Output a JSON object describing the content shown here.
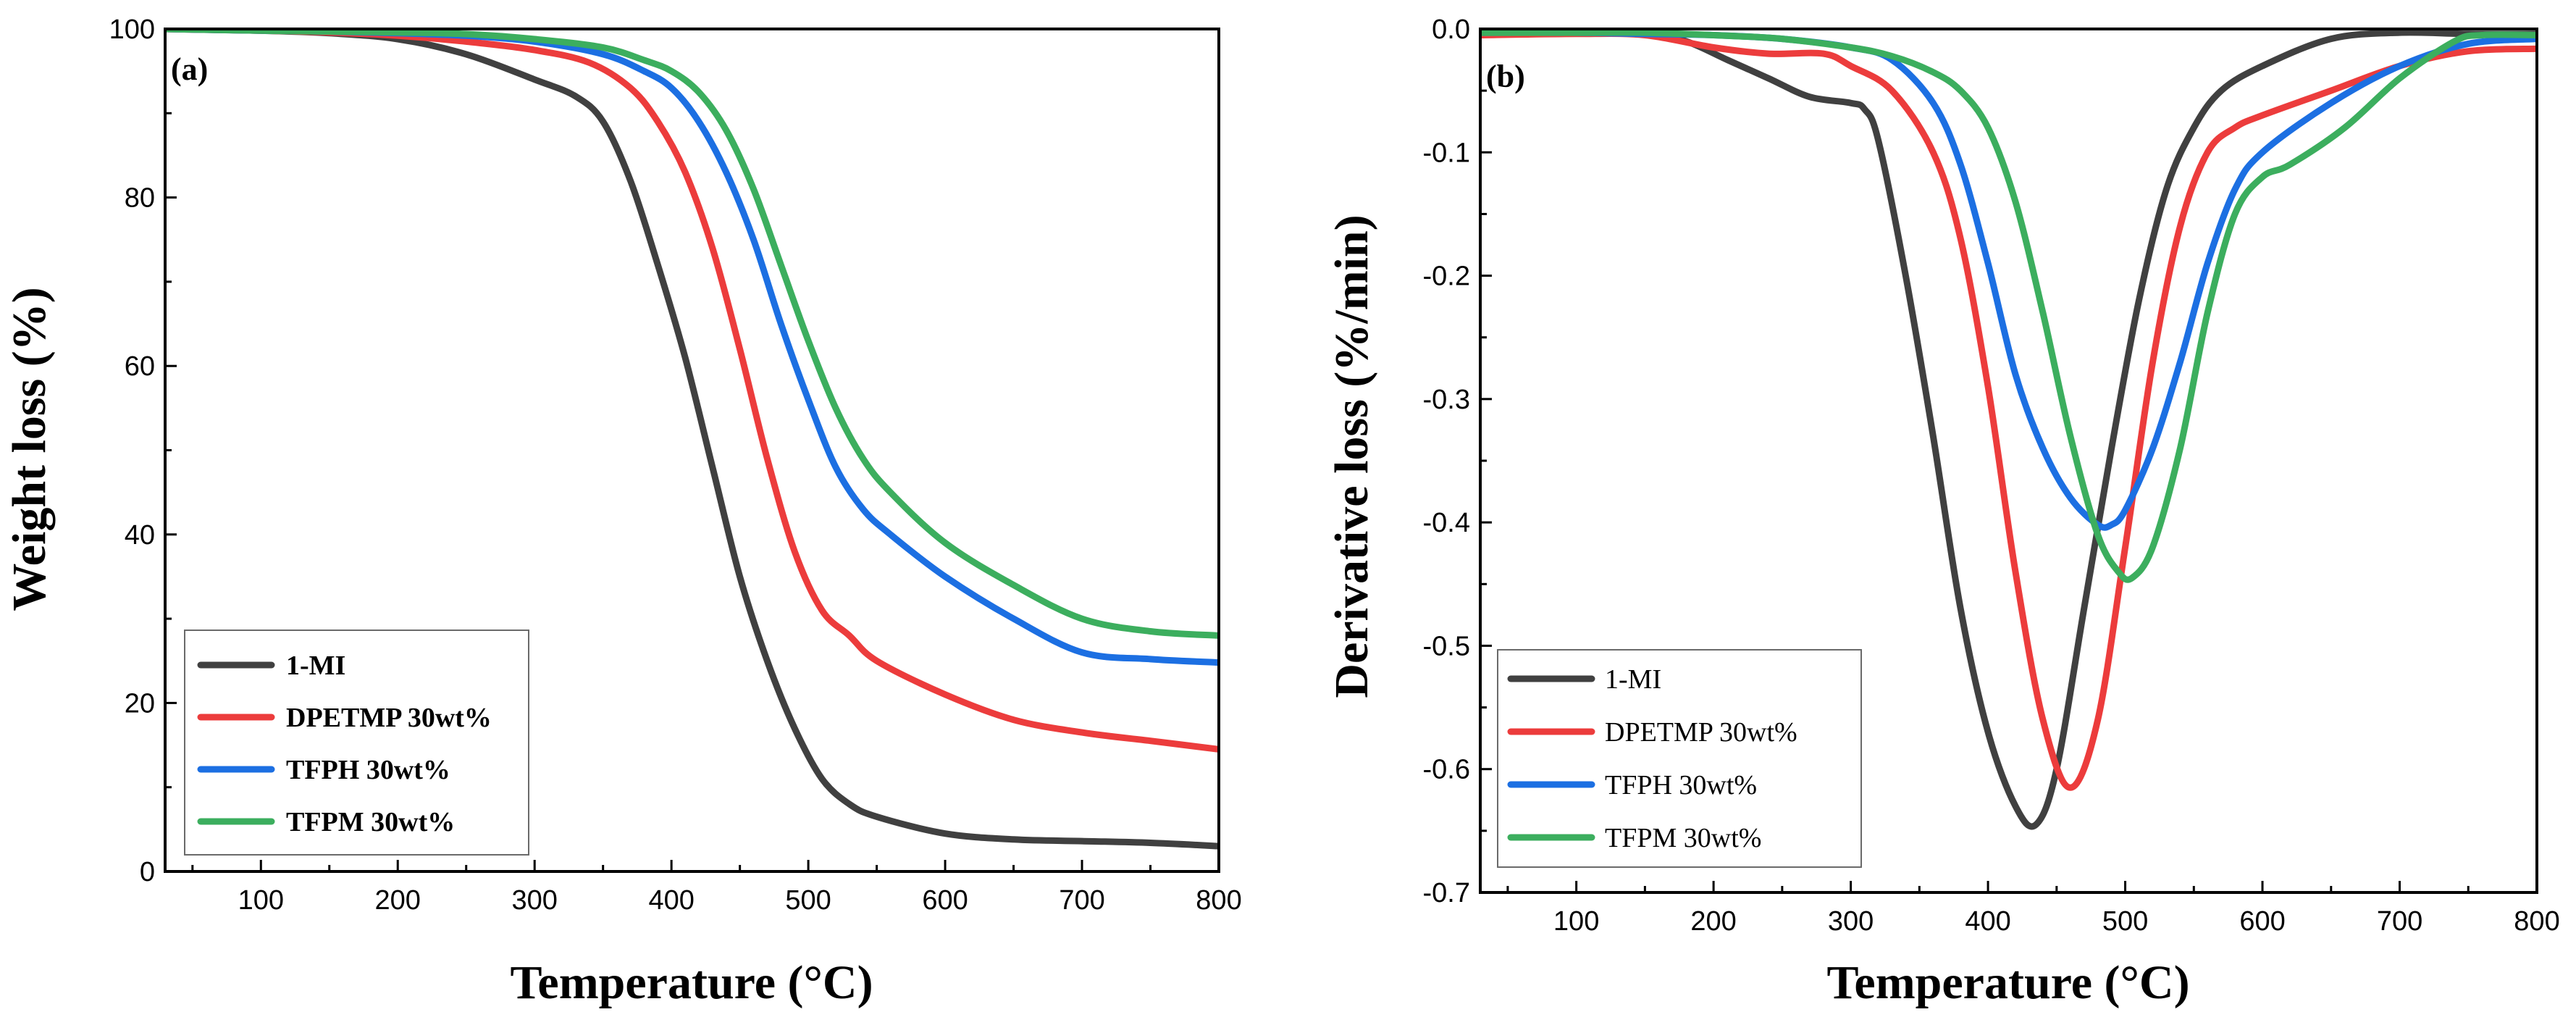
{
  "chart_data": [
    {
      "panel_label": "(a)",
      "type": "line",
      "title": "",
      "xlabel": "Temperature (°C)",
      "ylabel": "Weight loss (%)",
      "xlim": [
        30,
        800
      ],
      "ylim": [
        0,
        100
      ],
      "x_ticks": [
        100,
        200,
        300,
        400,
        500,
        600,
        700,
        800
      ],
      "y_ticks": [
        0,
        20,
        40,
        60,
        80,
        100
      ],
      "x_tick_labels": [
        "100",
        "200",
        "300",
        "400",
        "500",
        "600",
        "700",
        "800"
      ],
      "y_tick_labels": [
        "0",
        "20",
        "40",
        "60",
        "80",
        "100"
      ],
      "legend_position": "bottom-left",
      "grid": false,
      "series": [
        {
          "name": "1-MI",
          "color": "#404040",
          "x": [
            30,
            100,
            150,
            200,
            250,
            300,
            330,
            350,
            370,
            390,
            410,
            430,
            450,
            470,
            490,
            510,
            530,
            550,
            600,
            650,
            700,
            750,
            800
          ],
          "values": [
            100,
            99.8,
            99.5,
            98.8,
            97,
            94,
            92,
            89,
            82,
            72,
            61,
            48,
            35,
            25,
            17,
            11,
            8,
            6.5,
            4.5,
            3.8,
            3.6,
            3.4,
            3
          ]
        },
        {
          "name": "DPETMP 30wt%",
          "color": "#ec3c3c",
          "x": [
            30,
            100,
            150,
            200,
            250,
            300,
            340,
            370,
            390,
            410,
            430,
            450,
            470,
            490,
            510,
            530,
            550,
            600,
            650,
            700,
            750,
            800
          ],
          "values": [
            100,
            99.8,
            99.6,
            99.2,
            98.5,
            97.5,
            96,
            93,
            89,
            83,
            74,
            62,
            49,
            38,
            31,
            28,
            25,
            21,
            18,
            16.5,
            15.5,
            14.5
          ]
        },
        {
          "name": "TFPH 30wt%",
          "color": "#1c6fe2",
          "x": [
            30,
            100,
            150,
            200,
            250,
            300,
            350,
            380,
            400,
            420,
            440,
            460,
            480,
            500,
            520,
            540,
            560,
            600,
            650,
            700,
            750,
            800
          ],
          "values": [
            100,
            99.8,
            99.7,
            99.5,
            99.2,
            98.5,
            97,
            95,
            93,
            89,
            83,
            75,
            65,
            56,
            48,
            43,
            40,
            35,
            30,
            26,
            25.2,
            24.8
          ]
        },
        {
          "name": "TFPM 30wt%",
          "color": "#3cae5e",
          "x": [
            30,
            100,
            150,
            200,
            250,
            300,
            350,
            380,
            400,
            420,
            440,
            460,
            480,
            500,
            520,
            540,
            560,
            600,
            650,
            700,
            750,
            800
          ],
          "values": [
            100,
            99.8,
            99.7,
            99.6,
            99.4,
            98.8,
            97.8,
            96.3,
            95,
            92.5,
            88,
            81,
            72,
            63,
            55,
            49,
            45,
            39,
            34,
            30,
            28.5,
            28
          ]
        }
      ]
    },
    {
      "panel_label": "(b)",
      "type": "line",
      "title": "",
      "xlabel": "Temperature (°C)",
      "ylabel": "Derivative loss (%/min)",
      "xlim": [
        30,
        800
      ],
      "ylim": [
        -0.7,
        0
      ],
      "x_ticks": [
        100,
        200,
        300,
        400,
        500,
        600,
        700,
        800
      ],
      "y_ticks": [
        0,
        -0.1,
        -0.2,
        -0.3,
        -0.4,
        -0.5,
        -0.6,
        -0.7
      ],
      "x_tick_labels": [
        "100",
        "200",
        "300",
        "400",
        "500",
        "600",
        "700",
        "800"
      ],
      "y_tick_labels": [
        "0.0",
        "-0.1",
        "-0.2",
        "-0.3",
        "-0.4",
        "-0.5",
        "-0.6",
        "-0.7"
      ],
      "legend_position": "bottom-left",
      "grid": false,
      "series": [
        {
          "name": "1-MI",
          "color": "#404040",
          "x": [
            30,
            100,
            150,
            180,
            210,
            240,
            270,
            300,
            310,
            320,
            340,
            360,
            380,
            400,
            420,
            435,
            450,
            470,
            490,
            510,
            530,
            550,
            570,
            600,
            650,
            700,
            750,
            800
          ],
          "values": [
            -0.003,
            -0.003,
            -0.003,
            -0.01,
            -0.025,
            -0.04,
            -0.055,
            -0.06,
            -0.065,
            -0.09,
            -0.2,
            -0.33,
            -0.47,
            -0.57,
            -0.63,
            -0.645,
            -0.6,
            -0.47,
            -0.34,
            -0.22,
            -0.13,
            -0.08,
            -0.05,
            -0.03,
            -0.008,
            -0.003,
            -0.004,
            -0.004
          ]
        },
        {
          "name": "DPETMP 30wt%",
          "color": "#ec3c3c",
          "x": [
            30,
            100,
            150,
            200,
            240,
            280,
            300,
            330,
            360,
            380,
            400,
            420,
            440,
            460,
            480,
            500,
            520,
            540,
            560,
            580,
            600,
            650,
            700,
            750,
            800
          ],
          "values": [
            -0.005,
            -0.004,
            -0.005,
            -0.015,
            -0.02,
            -0.02,
            -0.03,
            -0.05,
            -0.1,
            -0.17,
            -0.29,
            -0.44,
            -0.56,
            -0.615,
            -0.56,
            -0.42,
            -0.27,
            -0.16,
            -0.1,
            -0.08,
            -0.07,
            -0.05,
            -0.03,
            -0.018,
            -0.016
          ]
        },
        {
          "name": "TFPH 30wt%",
          "color": "#1c6fe2",
          "x": [
            30,
            100,
            150,
            200,
            250,
            300,
            330,
            360,
            380,
            400,
            420,
            440,
            460,
            480,
            490,
            500,
            520,
            540,
            560,
            580,
            600,
            650,
            700,
            750,
            800
          ],
          "values": [
            -0.003,
            -0.003,
            -0.004,
            -0.005,
            -0.008,
            -0.015,
            -0.025,
            -0.06,
            -0.11,
            -0.19,
            -0.28,
            -0.34,
            -0.38,
            -0.402,
            -0.402,
            -0.39,
            -0.34,
            -0.27,
            -0.19,
            -0.13,
            -0.1,
            -0.06,
            -0.03,
            -0.012,
            -0.008
          ]
        },
        {
          "name": "TFPM 30wt%",
          "color": "#3cae5e",
          "x": [
            30,
            100,
            150,
            200,
            250,
            300,
            330,
            360,
            380,
            400,
            420,
            440,
            460,
            480,
            495,
            505,
            520,
            540,
            560,
            580,
            600,
            620,
            660,
            700,
            740,
            760,
            800
          ],
          "values": [
            -0.003,
            -0.003,
            -0.003,
            -0.005,
            -0.008,
            -0.015,
            -0.022,
            -0.035,
            -0.05,
            -0.08,
            -0.14,
            -0.23,
            -0.33,
            -0.41,
            -0.44,
            -0.445,
            -0.42,
            -0.34,
            -0.23,
            -0.15,
            -0.12,
            -0.11,
            -0.08,
            -0.04,
            -0.01,
            -0.005,
            -0.005
          ]
        }
      ]
    }
  ]
}
